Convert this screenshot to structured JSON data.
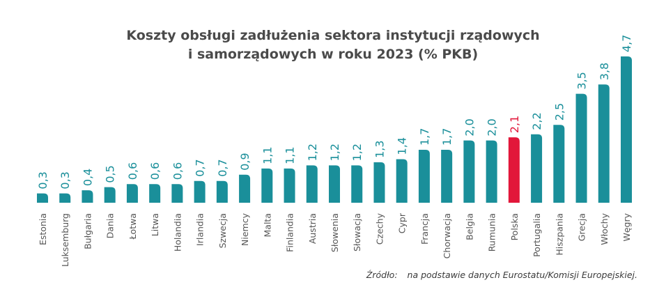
{
  "chart_data": {
    "type": "bar",
    "title": "Koszty obsługi zadłużenia sektora instytucji rządowych i samorządowych w roku 2023 (% PKB)",
    "title_lines": [
      "Koszty obsługi zadłużenia sektora instytucji rządowych",
      "i samorządowych w roku 2023 (% PKB)"
    ],
    "categories": [
      "Estonia",
      "Luksemburg",
      "Bułgaria",
      "Dania",
      "Łotwa",
      "Litwa",
      "Holandia",
      "Irlandia",
      "Szwecja",
      "Niemcy",
      "Malta",
      "Finlandia",
      "Austria",
      "Słowenia",
      "Słowacja",
      "Czechy",
      "Cypr",
      "Francja",
      "Chorwacja",
      "Belgia",
      "Rumunia",
      "Polska",
      "Portugalia",
      "Hiszpania",
      "Grecja",
      "Włochy",
      "Węgry"
    ],
    "values": [
      0.3,
      0.3,
      0.4,
      0.5,
      0.6,
      0.6,
      0.6,
      0.7,
      0.7,
      0.9,
      1.1,
      1.1,
      1.2,
      1.2,
      1.2,
      1.3,
      1.4,
      1.7,
      1.7,
      2.0,
      2.0,
      2.1,
      2.2,
      2.5,
      3.5,
      3.8,
      4.7
    ],
    "value_labels": [
      "0,3",
      "0,3",
      "0,4",
      "0,5",
      "0,6",
      "0,6",
      "0,6",
      "0,7",
      "0,7",
      "0,9",
      "1,1",
      "1,1",
      "1,2",
      "1,2",
      "1,2",
      "1,3",
      "1,4",
      "1,7",
      "1,7",
      "2,0",
      "2,0",
      "2,1",
      "2,2",
      "2,5",
      "3,5",
      "3,8",
      "4,7"
    ],
    "highlight": "Polska",
    "ylim": [
      0,
      5
    ],
    "grid": false,
    "colors": {
      "bar": "#1a8f9a",
      "highlight": "#e2173a",
      "label": "#555555"
    }
  },
  "source": {
    "label": "Źródło:",
    "text": "na podstawie danych Eurostatu/Komisji Europejskiej."
  }
}
